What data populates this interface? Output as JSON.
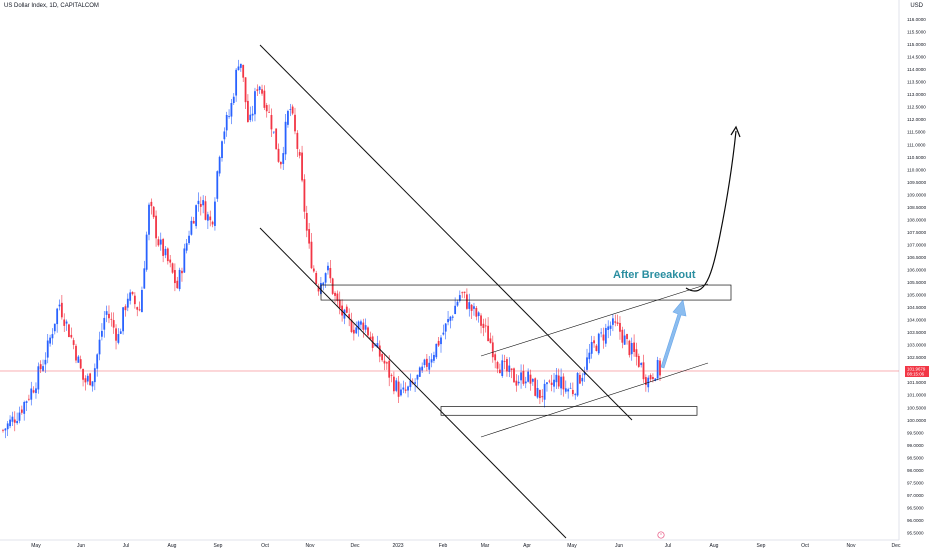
{
  "header": {
    "title": "US Dollar Index, 1D, CAPITALCOM",
    "currency": "USD"
  },
  "chart_data": {
    "type": "candlestick",
    "title": "US Dollar Index, 1D, CAPITALCOM",
    "ylim": [
      95.5,
      116.5
    ],
    "y_ticks": [
      "95.5000",
      "96.0000",
      "96.5000",
      "97.0000",
      "97.5000",
      "98.0000",
      "98.5000",
      "99.0000",
      "99.5000",
      "100.0000",
      "100.5000",
      "101.0000",
      "101.5000",
      "102.0000",
      "102.5000",
      "103.0000",
      "103.5000",
      "104.0000",
      "104.5000",
      "105.0000",
      "105.5000",
      "106.0000",
      "106.5000",
      "107.0000",
      "107.5000",
      "108.0000",
      "108.5000",
      "109.0000",
      "109.5000",
      "110.0000",
      "110.5000",
      "111.0000",
      "111.5000",
      "112.0000",
      "112.5000",
      "113.0000",
      "113.5000",
      "114.0000",
      "114.5000",
      "115.0000",
      "115.5000",
      "116.0000"
    ],
    "x_ticks": [
      "May",
      "Jun",
      "Jul",
      "Aug",
      "Sep",
      "Oct",
      "Nov",
      "Dec",
      "2023",
      "Feb",
      "Mar",
      "Apr",
      "May",
      "Jun",
      "Jul",
      "Aug",
      "Sep",
      "Oct",
      "Nov",
      "Dec"
    ],
    "current_price": {
      "label": "101.9679",
      "countdown": "08:15:06",
      "value": 101.9679
    },
    "price_path": [
      [
        0,
        99.6
      ],
      [
        0.5,
        100.3
      ],
      [
        1,
        101.4
      ],
      [
        1.4,
        102.7
      ],
      [
        1.8,
        104.7
      ],
      [
        2.3,
        102.9
      ],
      [
        2.6,
        101.5
      ],
      [
        2.9,
        101.8
      ],
      [
        3.3,
        104.4
      ],
      [
        3.7,
        103.3
      ],
      [
        4.0,
        105.0
      ],
      [
        4.4,
        104.4
      ],
      [
        4.7,
        108.6
      ],
      [
        5.0,
        107.1
      ],
      [
        5.3,
        106.3
      ],
      [
        5.6,
        105.3
      ],
      [
        6.0,
        107.7
      ],
      [
        6.3,
        108.9
      ],
      [
        6.7,
        107.8
      ],
      [
        7.0,
        111.3
      ],
      [
        7.3,
        112.3
      ],
      [
        7.6,
        114.7
      ],
      [
        7.9,
        111.6
      ],
      [
        8.2,
        113.6
      ],
      [
        8.6,
        112.0
      ],
      [
        8.9,
        110.2
      ],
      [
        9.2,
        112.6
      ],
      [
        9.5,
        110.6
      ],
      [
        9.8,
        107.0
      ],
      [
        10.1,
        105.3
      ],
      [
        10.4,
        106.1
      ],
      [
        10.7,
        104.7
      ],
      [
        11.0,
        104.0
      ],
      [
        11.3,
        103.7
      ],
      [
        11.6,
        103.9
      ],
      [
        11.9,
        103.0
      ],
      [
        12.2,
        102.4
      ],
      [
        12.5,
        101.6
      ],
      [
        12.8,
        101.0
      ],
      [
        13.1,
        101.3
      ],
      [
        13.4,
        101.8
      ],
      [
        13.8,
        102.7
      ],
      [
        14.1,
        103.4
      ],
      [
        14.4,
        104.2
      ],
      [
        14.7,
        105.1
      ],
      [
        15.0,
        104.5
      ],
      [
        15.3,
        104.0
      ],
      [
        15.6,
        103.3
      ],
      [
        15.9,
        102.3
      ],
      [
        16.2,
        101.9
      ],
      [
        16.5,
        101.6
      ],
      [
        16.8,
        101.8
      ],
      [
        17.2,
        101.0
      ],
      [
        17.5,
        101.2
      ],
      [
        17.8,
        101.7
      ],
      [
        18.0,
        101.3
      ],
      [
        18.3,
        101.2
      ],
      [
        18.6,
        101.9
      ],
      [
        18.9,
        102.8
      ],
      [
        19.2,
        103.3
      ],
      [
        19.5,
        103.8
      ],
      [
        19.8,
        103.6
      ],
      [
        20.1,
        102.9
      ],
      [
        20.4,
        102.4
      ],
      [
        20.7,
        101.6
      ],
      [
        21.0,
        102.1
      ],
      [
        21.1,
        101.97
      ]
    ],
    "candle_span": {
      "start_x": 3,
      "end_x": 660,
      "count": 280
    },
    "annotations": [
      {
        "text": "After Breeakout",
        "color": "#2a8ea0"
      }
    ],
    "drawings": {
      "channel_upper": [
        [
          260,
          45
        ],
        [
          632,
          420
        ]
      ],
      "channel_lower": [
        [
          260,
          228
        ],
        [
          566,
          538
        ]
      ],
      "resistance_zone": {
        "top": 105.4,
        "bottom": 104.8,
        "x0": 321,
        "x1": 731
      },
      "support_zone": {
        "top": 100.55,
        "bottom": 100.2,
        "x0": 441,
        "x1": 697
      },
      "rising_channel_upper": [
        [
          481,
          356
        ],
        [
          708,
          284
        ]
      ],
      "rising_channel_lower": [
        [
          481,
          437
        ],
        [
          708,
          363
        ]
      ],
      "projection_color": "#7fb6ef",
      "path_color": "#0b0b0b"
    },
    "colors": {
      "up": "#2962ff",
      "down": "#f23645",
      "price_line": "#f23645",
      "axis_text": "#131722"
    },
    "grid": false
  },
  "footer_icon": "clock-icon"
}
